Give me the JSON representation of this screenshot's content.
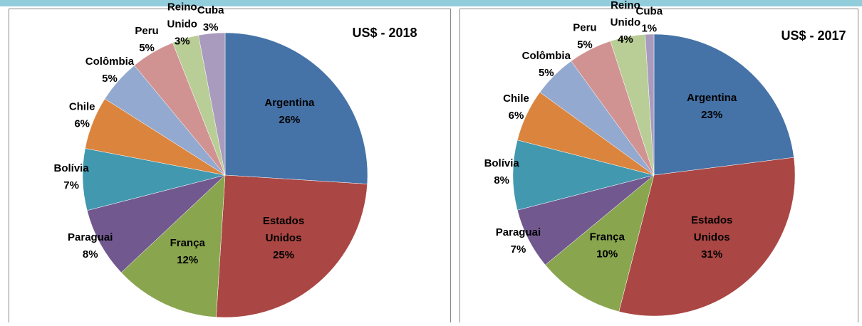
{
  "chart_data": [
    {
      "type": "pie",
      "title": "US$ - 2018",
      "categories": [
        "Argentina",
        "Estados Unidos",
        "França",
        "Paraguai",
        "Bolívia",
        "Chile",
        "Colômbia",
        "Peru",
        "Reino Unido",
        "Cuba"
      ],
      "values": [
        26,
        25,
        12,
        8,
        7,
        6,
        5,
        5,
        3,
        3
      ],
      "value_labels": [
        "26%",
        "25%",
        "12%",
        "8%",
        "7%",
        "6%",
        "5%",
        "5%",
        "3%",
        "3%"
      ],
      "colors": [
        "#4572a7",
        "#aa4643",
        "#89a54e",
        "#71588f",
        "#4198af",
        "#db843d",
        "#93a9cf",
        "#d19392",
        "#b9cd96",
        "#a99bbd"
      ]
    },
    {
      "type": "pie",
      "title": "US$ - 2017",
      "categories": [
        "Argentina",
        "Estados Unidos",
        "França",
        "Paraguai",
        "Bolívia",
        "Chile",
        "Colômbia",
        "Peru",
        "Reino Unido",
        "Cuba"
      ],
      "values": [
        23,
        31,
        10,
        7,
        8,
        6,
        5,
        5,
        4,
        1
      ],
      "value_labels": [
        "23%",
        "31%",
        "10%",
        "7%",
        "8%",
        "6%",
        "5%",
        "5%",
        "4%",
        "1%"
      ],
      "colors": [
        "#4572a7",
        "#aa4643",
        "#89a54e",
        "#71588f",
        "#4198af",
        "#db843d",
        "#93a9cf",
        "#d19392",
        "#b9cd96",
        "#a99bbd"
      ]
    }
  ]
}
